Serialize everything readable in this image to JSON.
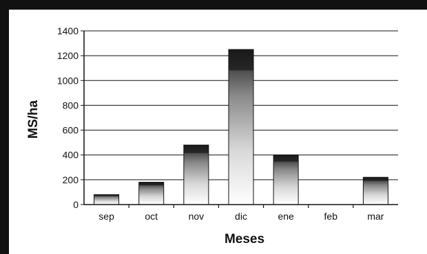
{
  "chart_data": {
    "type": "bar",
    "categories": [
      "sep",
      "oct",
      "nov",
      "dic",
      "ene",
      "feb",
      "mar"
    ],
    "values": [
      80,
      180,
      480,
      1250,
      400,
      0,
      220
    ],
    "xlabel": "Meses",
    "ylabel": "MS/ha",
    "ylim": [
      0,
      1400
    ],
    "yticks": [
      0,
      200,
      400,
      600,
      800,
      1000,
      1200,
      1400
    ],
    "grid": true,
    "bar_fill": "gradient: white at base, gray to black at top",
    "border_color": "#111111"
  }
}
